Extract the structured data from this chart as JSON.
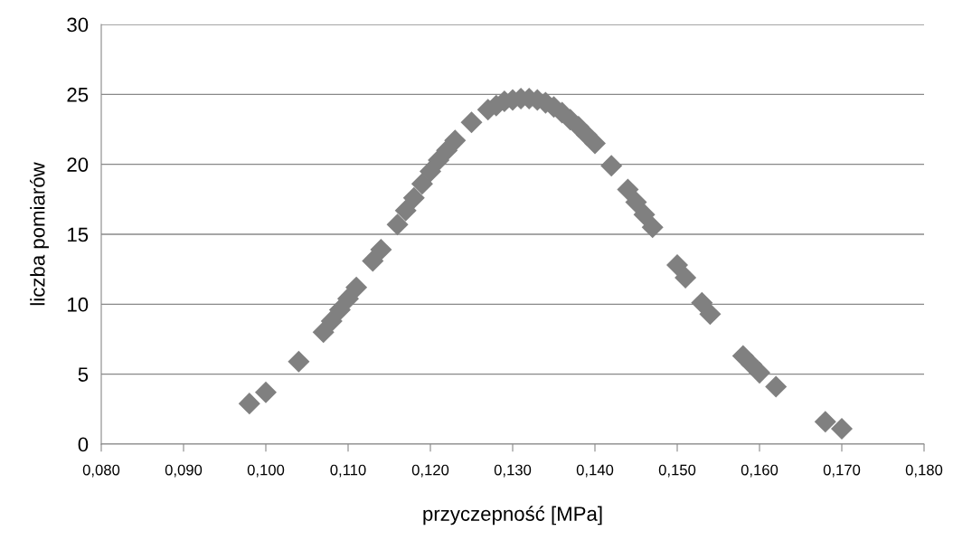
{
  "chart_data": {
    "type": "scatter",
    "xlabel": "przyczepność [MPa]",
    "ylabel": "liczba pomiarów",
    "x": [
      0.098,
      0.1,
      0.104,
      0.107,
      0.108,
      0.109,
      0.11,
      0.111,
      0.113,
      0.114,
      0.116,
      0.117,
      0.118,
      0.119,
      0.12,
      0.121,
      0.122,
      0.123,
      0.125,
      0.127,
      0.128,
      0.129,
      0.13,
      0.131,
      0.132,
      0.133,
      0.134,
      0.135,
      0.136,
      0.137,
      0.138,
      0.139,
      0.14,
      0.142,
      0.144,
      0.145,
      0.146,
      0.147,
      0.15,
      0.151,
      0.153,
      0.154,
      0.158,
      0.159,
      0.16,
      0.162,
      0.168,
      0.17
    ],
    "values": [
      2.9,
      3.7,
      5.9,
      8.0,
      8.8,
      9.6,
      10.4,
      11.2,
      13.1,
      13.9,
      15.7,
      16.7,
      17.6,
      18.6,
      19.5,
      20.3,
      21.0,
      21.7,
      23.0,
      23.9,
      24.2,
      24.5,
      24.6,
      24.7,
      24.7,
      24.6,
      24.4,
      24.1,
      23.7,
      23.2,
      22.7,
      22.1,
      21.5,
      19.9,
      18.2,
      17.3,
      16.4,
      15.5,
      12.8,
      11.9,
      10.1,
      9.3,
      6.3,
      5.7,
      5.1,
      4.1,
      1.6,
      1.1
    ],
    "color": "#808080",
    "marker": "diamond",
    "grid": "y",
    "xlim": [
      0.08,
      0.18
    ],
    "xticks": [
      {
        "value": 0.08,
        "label": "0,080"
      },
      {
        "value": 0.09,
        "label": "0,090"
      },
      {
        "value": 0.1,
        "label": "0,100"
      },
      {
        "value": 0.11,
        "label": "0,110"
      },
      {
        "value": 0.12,
        "label": "0,120"
      },
      {
        "value": 0.13,
        "label": "0,130"
      },
      {
        "value": 0.14,
        "label": "0,140"
      },
      {
        "value": 0.15,
        "label": "0,150"
      },
      {
        "value": 0.16,
        "label": "0,160"
      },
      {
        "value": 0.17,
        "label": "0,170"
      },
      {
        "value": 0.18,
        "label": "0,180"
      }
    ],
    "ylim": [
      0,
      30
    ],
    "yticks": [
      0,
      5,
      10,
      15,
      20,
      25,
      30
    ]
  }
}
